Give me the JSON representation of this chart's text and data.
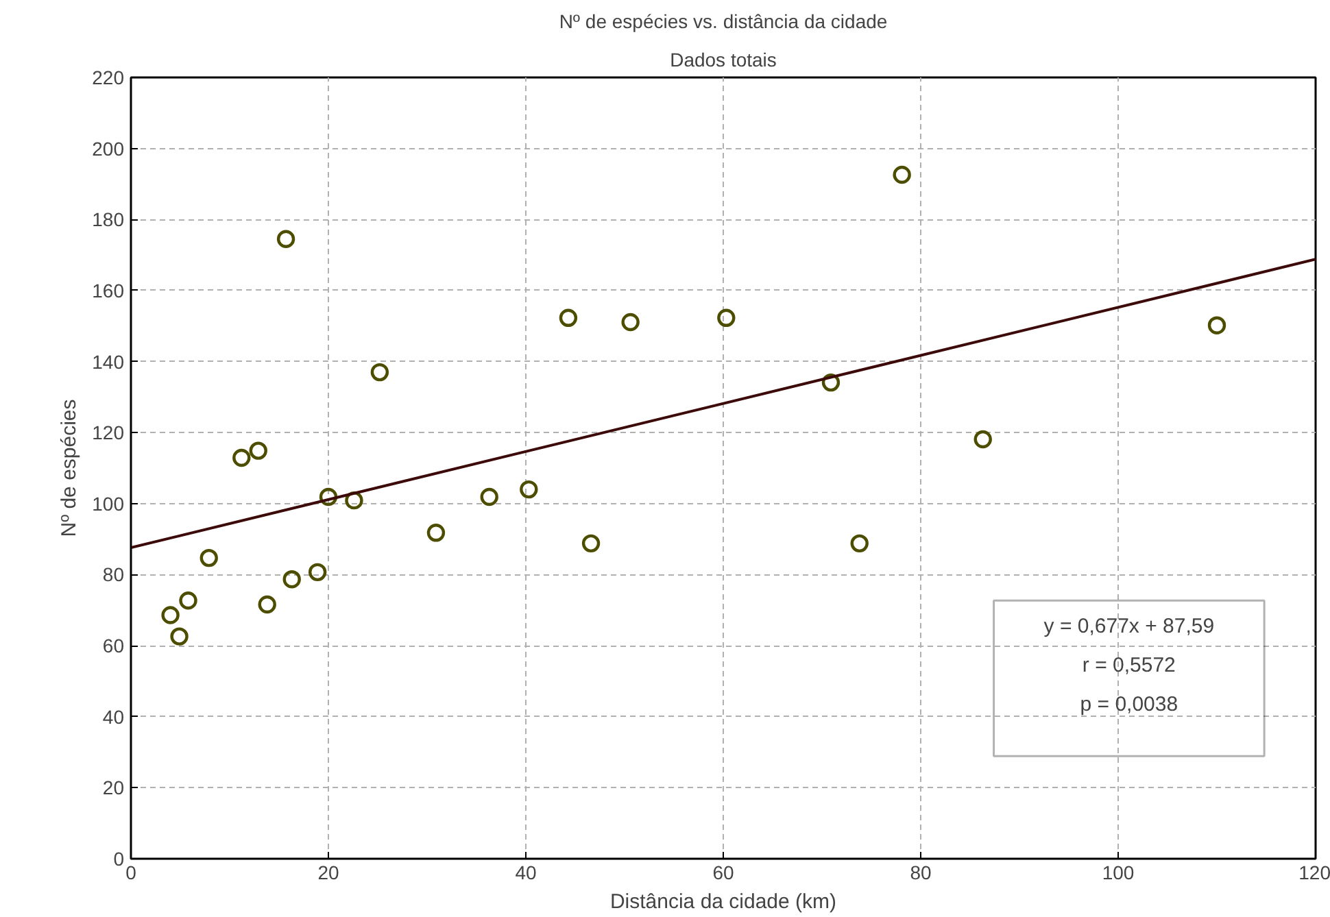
{
  "chart_data": {
    "type": "scatter",
    "title": "Nº de espécies vs. distância da cidade",
    "subtitle": "Dados totais",
    "xlabel": "Distância da cidade (km)",
    "ylabel": "Nº de espécies",
    "series": [
      {
        "color": "#4d4d00",
        "marker": "circle",
        "x": [
          4.0,
          4.9,
          5.8,
          7.9,
          11.2,
          12.9,
          13.8,
          15.7,
          16.3,
          18.9,
          20.0,
          22.6,
          25.2,
          30.9,
          36.3,
          40.3,
          44.3,
          46.6,
          50.6,
          60.3,
          70.9,
          73.8,
          78.1,
          86.3,
          110.0
        ],
        "values": [
          68.6,
          62.6,
          72.7,
          84.7,
          112.9,
          114.9,
          71.6,
          174.5,
          78.7,
          80.7,
          101.9,
          100.9,
          137,
          91.8,
          101.9,
          104,
          152.3,
          88.8,
          151.1,
          152.3,
          134.1,
          88.8,
          192.6,
          118.1,
          150.2
        ]
      },
      {
        "type": "line",
        "color": "#3d0a0a",
        "x": [
          0,
          120
        ],
        "values": [
          87.6,
          168.8
        ]
      }
    ],
    "xlim": [
      0,
      120
    ],
    "xticks": [
      0,
      20,
      40,
      60,
      80,
      100,
      120
    ],
    "ylim": [
      0,
      220
    ],
    "yticks": [
      0,
      20,
      40,
      60,
      80,
      100,
      120,
      140,
      160,
      180,
      200,
      220
    ],
    "grid": true,
    "annotations": [
      "y = 0,677x + 87,59",
      "r = 0,5572",
      "p = 0,0038"
    ]
  }
}
